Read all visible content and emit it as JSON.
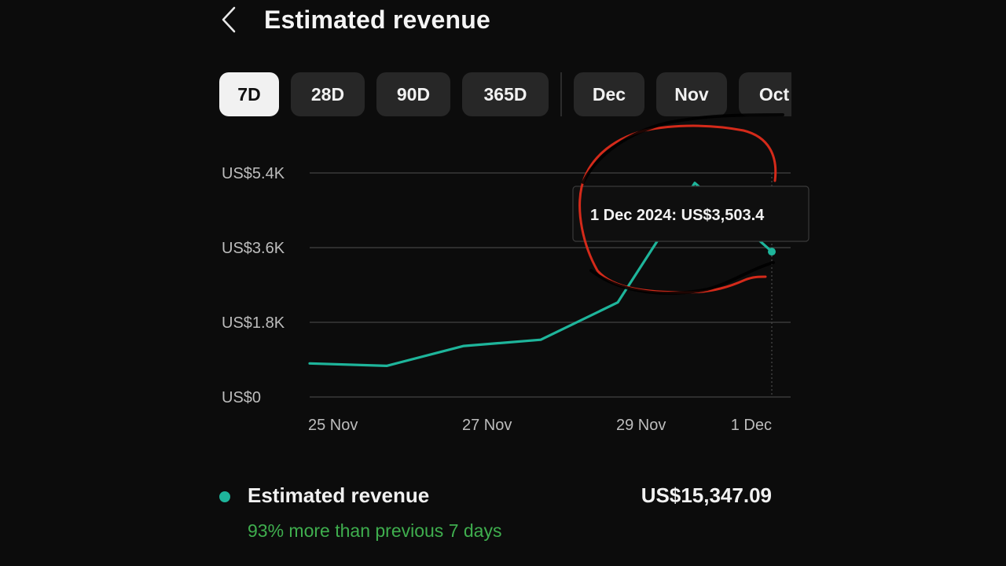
{
  "header": {
    "back_icon": "chevron-left-icon",
    "title": "Estimated revenue"
  },
  "period_chips": [
    {
      "label": "7D",
      "active": true
    },
    {
      "label": "28D",
      "active": false
    },
    {
      "label": "90D",
      "active": false
    },
    {
      "label": "365D",
      "active": false
    },
    {
      "label": "Dec",
      "active": false
    },
    {
      "label": "Nov",
      "active": false
    },
    {
      "label": "Oct",
      "active": false
    }
  ],
  "chart_data": {
    "type": "line",
    "x": [
      "25 Nov",
      "26 Nov",
      "27 Nov",
      "28 Nov",
      "29 Nov",
      "30 Nov",
      "1 Dec"
    ],
    "y": [
      810,
      750,
      1230,
      1380,
      2280,
      5160,
      3503.4
    ],
    "x_tick_labels": [
      "25 Nov",
      "27 Nov",
      "29 Nov",
      "1 Dec"
    ],
    "y_tick_labels": [
      "US$0",
      "US$1.8K",
      "US$3.6K",
      "US$5.4K"
    ],
    "y_ticks": [
      0,
      1800,
      3600,
      5400
    ],
    "ylim": [
      0,
      5400
    ],
    "grid": true,
    "line_color": "#1eb59b",
    "tooltip": {
      "text": "1 Dec 2024: US$3,503.4",
      "x": "1 Dec",
      "y": 3503.4
    },
    "annotation": {
      "shape": "hand-drawn circle",
      "color": "#d42a1a"
    }
  },
  "summary": {
    "series_color": "#1eb59b",
    "label": "Estimated revenue",
    "value": "US$15,347.09",
    "comparison": "93% more than previous 7 days",
    "comparison_color": "#3fae4e"
  }
}
